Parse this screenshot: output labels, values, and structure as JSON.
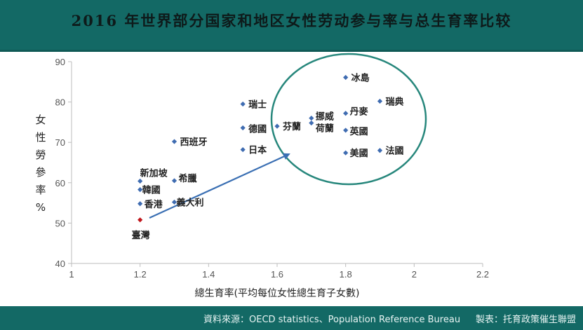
{
  "header": {
    "title": "2016 年世界部分国家和地区女性劳动参与率与总生育率比较"
  },
  "footer": {
    "source": "資料來源：OECD statistics、Population Reference Bureau",
    "credit": "製表：托育政策催生聯盟"
  },
  "colors": {
    "header_bg": "#136965",
    "point": "#3f6cb1",
    "highlight": "#c0161c",
    "ellipse": "#27877c",
    "arrow": "#3a6fb3"
  },
  "chart_data": {
    "type": "scatter",
    "xlabel": "總生育率(平均每位女性總生育子女數)",
    "ylabel": "女性勞參率%",
    "xlim": [
      1,
      2.2
    ],
    "ylim": [
      40,
      90
    ],
    "xticks": [
      1,
      1.2,
      1.4,
      1.6,
      1.8,
      2,
      2.2
    ],
    "xtick_labels": [
      "1",
      "1.2",
      "1.4",
      "1.6",
      "1.8",
      "2",
      "2.2"
    ],
    "yticks": [
      40,
      50,
      60,
      70,
      80,
      90
    ],
    "ytick_labels": [
      "40",
      "50",
      "60",
      "70",
      "80",
      "90"
    ],
    "grid": false,
    "points": [
      {
        "label": "冰島",
        "x": 1.8,
        "y": 86.1
      },
      {
        "label": "瑞士",
        "x": 1.5,
        "y": 79.5
      },
      {
        "label": "瑞典",
        "x": 1.9,
        "y": 80.2
      },
      {
        "label": "丹麥",
        "x": 1.8,
        "y": 77.2
      },
      {
        "label": "挪威",
        "x": 1.7,
        "y": 76.0
      },
      {
        "label": "荷蘭",
        "x": 1.7,
        "y": 74.8
      },
      {
        "label": "芬蘭",
        "x": 1.6,
        "y": 74.0
      },
      {
        "label": "德國",
        "x": 1.5,
        "y": 73.6
      },
      {
        "label": "英國",
        "x": 1.8,
        "y": 73.0
      },
      {
        "label": "西班牙",
        "x": 1.3,
        "y": 70.2
      },
      {
        "label": "日本",
        "x": 1.5,
        "y": 68.2
      },
      {
        "label": "美國",
        "x": 1.8,
        "y": 67.4
      },
      {
        "label": "法國",
        "x": 1.9,
        "y": 68.0
      },
      {
        "label": "新加坡",
        "x": 1.2,
        "y": 60.4
      },
      {
        "label": "希臘",
        "x": 1.3,
        "y": 60.5
      },
      {
        "label": "韓國",
        "x": 1.2,
        "y": 58.3
      },
      {
        "label": "義大利",
        "x": 1.3,
        "y": 55.2
      },
      {
        "label": "香港",
        "x": 1.2,
        "y": 54.8
      },
      {
        "label": "臺灣",
        "x": 1.2,
        "y": 50.8,
        "highlight": true
      }
    ]
  }
}
